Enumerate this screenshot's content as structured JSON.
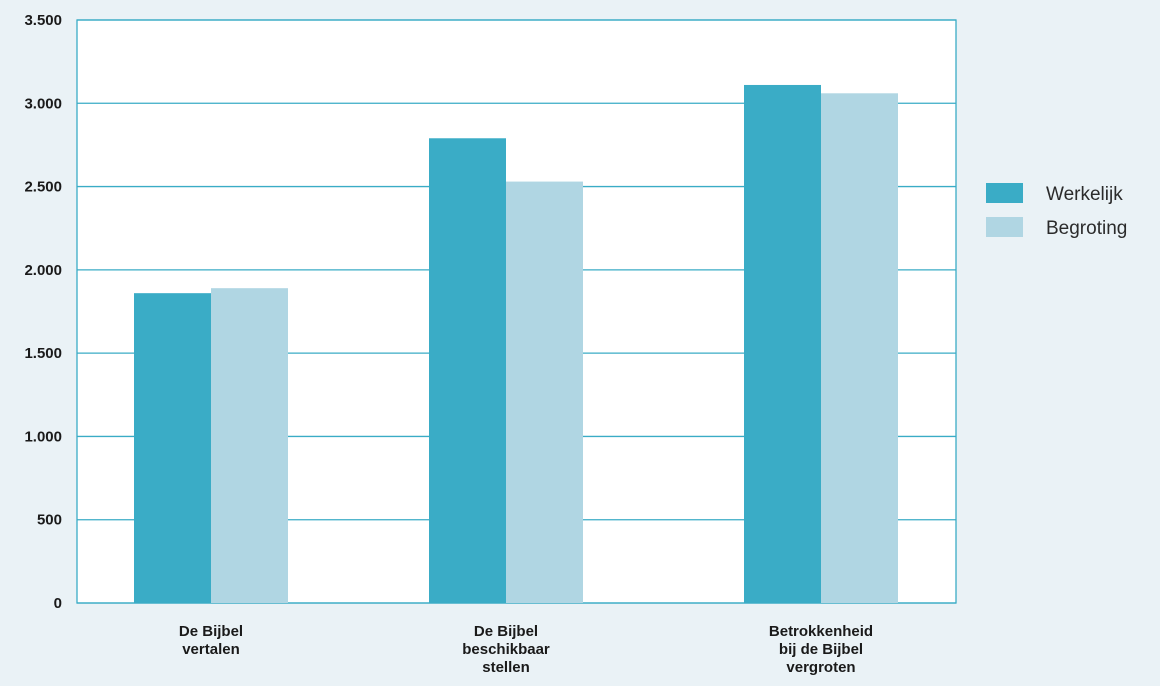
{
  "chart_data": {
    "type": "bar",
    "categories": [
      [
        "De Bijbel",
        "vertalen"
      ],
      [
        "De Bijbel",
        "beschikbaar",
        "stellen"
      ],
      [
        "Betrokkenheid",
        "bij de Bijbel",
        "vergroten"
      ]
    ],
    "series": [
      {
        "name": "Werkelijk",
        "color": "#3aacc6",
        "values": [
          1860,
          2790,
          3110
        ]
      },
      {
        "name": "Begroting",
        "color": "#b0d6e3",
        "values": [
          1890,
          2530,
          3060
        ]
      }
    ],
    "ylim": [
      0,
      3500
    ],
    "yticks": [
      0,
      500,
      1000,
      1500,
      2000,
      2500,
      3000,
      3500
    ],
    "ytick_labels": [
      "0",
      "500",
      "1.000",
      "1.500",
      "2.000",
      "2.500",
      "3.000",
      "3.500"
    ],
    "grid": true,
    "legend_position": "right",
    "title": "",
    "xlabel": "",
    "ylabel": "",
    "colors": {
      "background": "#eaf2f6",
      "plot_background": "#ffffff",
      "grid": "#3aacc6",
      "border": "#3aacc6"
    }
  }
}
